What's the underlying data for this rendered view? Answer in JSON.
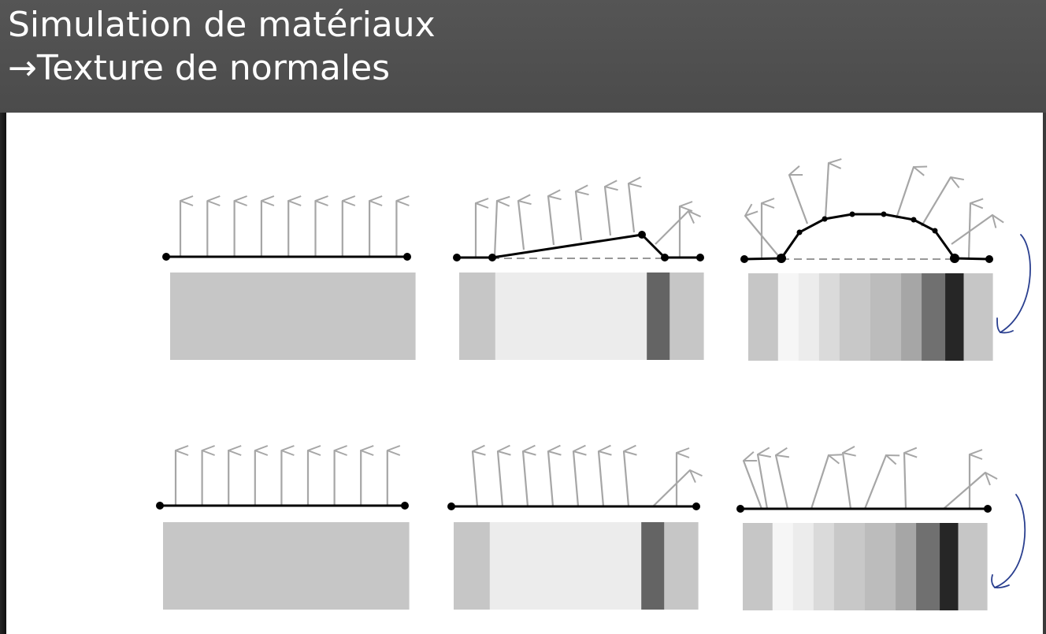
{
  "slide": {
    "title_line1": "Simulation de matériaux",
    "title_line2": "→Texture de normales"
  },
  "colors": {
    "title_bar": "#4f4f4f",
    "title_text": "#ffffff",
    "canvas": "#ffffff",
    "normal_arrow": "#a6a6a6",
    "surface_line": "#000000",
    "base_strip": "#c6c6c6",
    "annotation_ink": "#2a3f8f"
  },
  "icons": {
    "normal_arrow": "arrow-up-icon",
    "vertex": "dot-icon",
    "annotation": "curved-arrow-icon"
  },
  "rows": [
    {
      "name": "geometry-row",
      "panels": [
        {
          "name": "flat",
          "strip_shades": [
            "#c6c6c6"
          ],
          "strip_weights": [
            1
          ]
        },
        {
          "name": "ramp",
          "strip_shades": [
            "#c6c6c6",
            "#ececec",
            "#646464",
            "#c6c6c6"
          ],
          "strip_weights": [
            1.5,
            6.3,
            0.95,
            1.4
          ]
        },
        {
          "name": "bump",
          "strip_shades": [
            "#c6c6c6",
            "#f6f6f6",
            "#ececec",
            "#dadada",
            "#c8c8c8",
            "#bcbcbc",
            "#a6a6a6",
            "#707070",
            "#262626",
            "#c6c6c6"
          ],
          "strip_weights": [
            1.45,
            1,
            1,
            1,
            1.5,
            1.5,
            1,
            1.15,
            0.9,
            1.4
          ]
        }
      ]
    },
    {
      "name": "normal-map-row",
      "panels": [
        {
          "name": "flat",
          "strip_shades": [
            "#c6c6c6"
          ],
          "strip_weights": [
            1
          ]
        },
        {
          "name": "ramp",
          "strip_shades": [
            "#c6c6c6",
            "#ececec",
            "#646464",
            "#c6c6c6"
          ],
          "strip_weights": [
            1.5,
            6.3,
            0.95,
            1.4
          ]
        },
        {
          "name": "bump",
          "strip_shades": [
            "#c6c6c6",
            "#f6f6f6",
            "#ececec",
            "#dadada",
            "#c8c8c8",
            "#bcbcbc",
            "#a6a6a6",
            "#707070",
            "#262626",
            "#c6c6c6"
          ],
          "strip_weights": [
            1.45,
            1,
            1,
            1,
            1.5,
            1.5,
            1,
            1.15,
            0.9,
            1.4
          ]
        }
      ]
    }
  ]
}
